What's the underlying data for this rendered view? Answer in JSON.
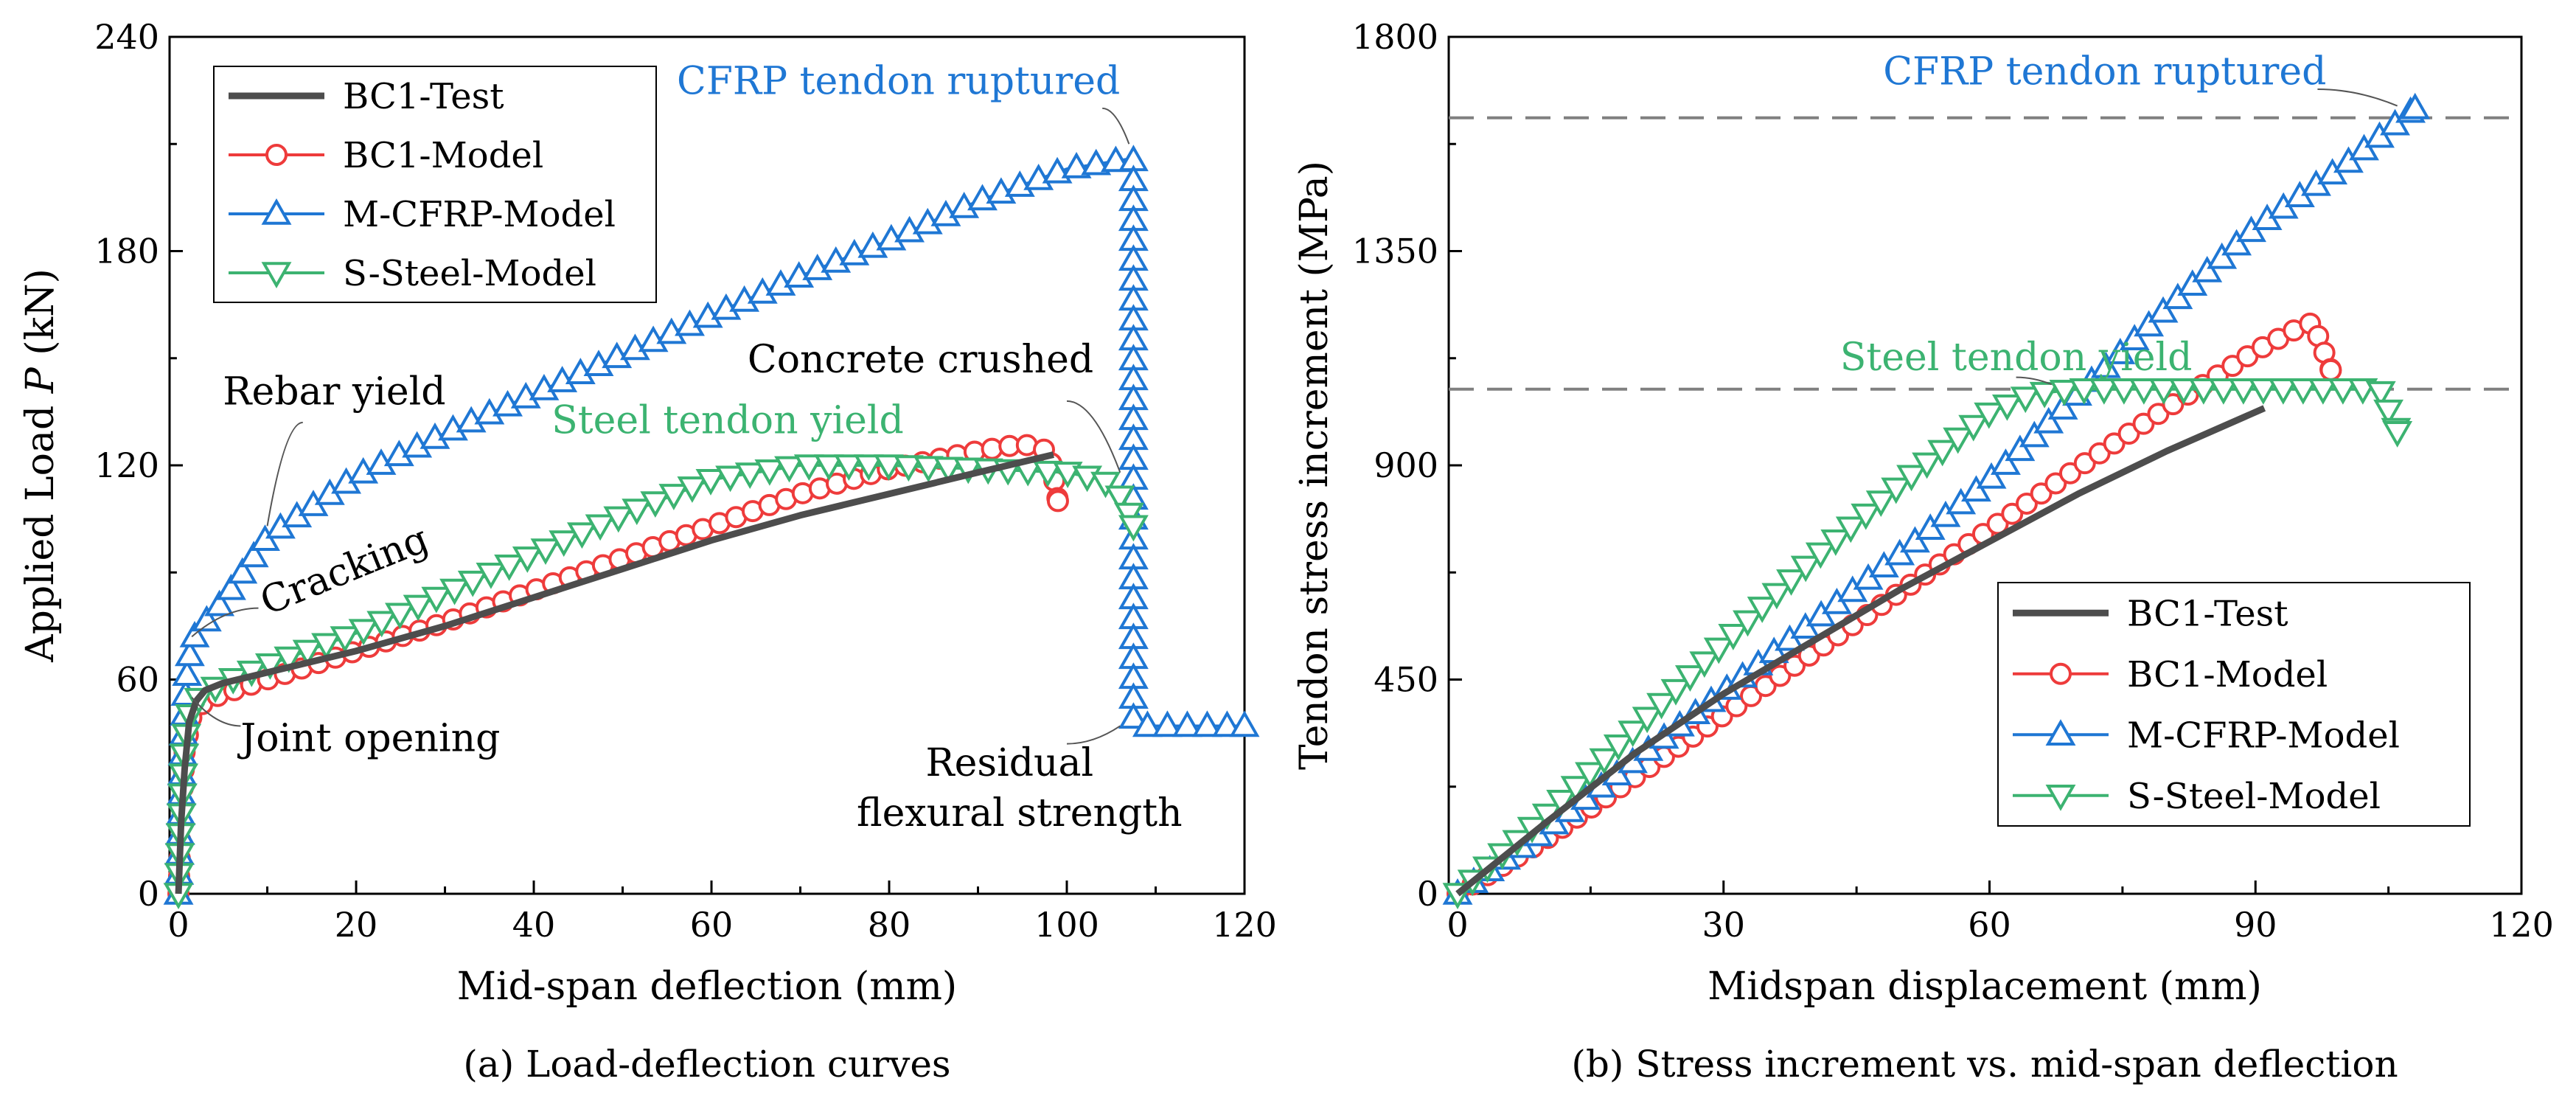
{
  "colors": {
    "test": "#4d4d4d",
    "bc1_model": "#ee3b3b",
    "cfrp": "#1f77d4",
    "steel": "#3cb371",
    "ref_line": "#808080",
    "axis": "#000000"
  },
  "chart_data": [
    {
      "id": "a",
      "type": "line",
      "caption": "(a) Load-deflection curves",
      "xlabel": "Mid-span deflection (mm)",
      "ylabel_prefix": "Applied Load ",
      "ylabel_var": "P",
      "ylabel_suffix": " (kN)",
      "xlim": [
        -1,
        120
      ],
      "ylim": [
        0,
        240
      ],
      "xticks": [
        0,
        20,
        40,
        60,
        80,
        100,
        120
      ],
      "yticks": [
        0,
        60,
        120,
        180,
        240
      ],
      "legend_position": "top-left",
      "series": [
        {
          "name": "BC1-Test",
          "style": "test",
          "marker": "none",
          "x": [
            0,
            0.3,
            0.7,
            1.2,
            2,
            3,
            5,
            10,
            20,
            30,
            40,
            50,
            60,
            70,
            80,
            90,
            98.5
          ],
          "y": [
            0,
            20,
            35,
            48,
            54,
            57,
            59,
            62,
            68,
            75,
            83,
            91,
            99,
            106,
            112,
            118,
            123
          ]
        },
        {
          "name": "BC1-Model",
          "style": "bc1_model",
          "marker": "circle",
          "x": [
            0,
            0.3,
            0.7,
            1.5,
            3,
            5,
            10,
            20,
            30,
            40,
            50,
            60,
            70,
            80,
            90,
            95,
            98,
            99
          ],
          "y": [
            0,
            20,
            40,
            50,
            54,
            56,
            60,
            68,
            76,
            85,
            94,
            103,
            112,
            119,
            124,
            126,
            124,
            110
          ]
        },
        {
          "name": "M-CFRP-Model",
          "style": "cfrp",
          "marker": "triangle-up",
          "x": [
            0,
            0.2,
            0.5,
            0.9,
            1.5,
            3,
            5,
            10,
            20,
            30,
            40,
            50,
            60,
            70,
            80,
            90,
            100,
            107.5,
            107.5,
            108,
            112,
            116,
            120
          ],
          "y": [
            0,
            18,
            40,
            60,
            71,
            76,
            82,
            100,
            117,
            129,
            140,
            151,
            162,
            173,
            183,
            194,
            203,
            206,
            48,
            47,
            47,
            47,
            47
          ]
        },
        {
          "name": "S-Steel-Model",
          "style": "steel",
          "marker": "triangle-down",
          "x": [
            0,
            0.3,
            0.7,
            1.5,
            3,
            5,
            10,
            20,
            30,
            40,
            50,
            60,
            70,
            80,
            90,
            100,
            104,
            106.5,
            107.5
          ],
          "y": [
            0,
            20,
            42,
            53,
            56,
            59,
            64,
            73,
            84,
            95,
            106,
            116,
            120,
            120,
            119,
            118,
            116,
            110,
            103
          ]
        }
      ],
      "annotations": [
        {
          "text": "CFRP tendon ruptured",
          "color": "cfrp",
          "x": 106,
          "y": 224,
          "anchor": "end",
          "leader": [
            [
              104,
              220
            ],
            [
              107,
              210
            ]
          ]
        },
        {
          "text": "Concrete crushed",
          "color": "axis",
          "x": 103,
          "y": 146,
          "anchor": "end",
          "leader": [
            [
              100,
              138
            ],
            [
              106,
              118
            ]
          ]
        },
        {
          "text": "Steel tendon yield",
          "color": "steel",
          "x": 42,
          "y": 129,
          "anchor": "start",
          "leader": []
        },
        {
          "text": "Rebar yield",
          "color": "axis",
          "x": 5,
          "y": 137,
          "anchor": "start",
          "leader": [
            [
              14,
              132
            ],
            [
              10,
              103
            ]
          ]
        },
        {
          "text": "Cracking",
          "color": "axis",
          "x": 10,
          "y": 78,
          "anchor": "start",
          "rotate": -22,
          "leader": [
            [
              9,
              80
            ],
            [
              1.5,
              72
            ]
          ]
        },
        {
          "text": "Joint opening",
          "color": "axis",
          "x": 7,
          "y": 40,
          "anchor": "start",
          "leader": [
            [
              7,
              47
            ],
            [
              1.5,
              55
            ]
          ]
        },
        {
          "text": "Residual",
          "color": "axis",
          "x": 103,
          "y": 33,
          "anchor": "end",
          "leader": [
            [
              100,
              42
            ],
            [
              106,
              47
            ]
          ]
        },
        {
          "text": "flexural strength",
          "color": "axis",
          "x": 113,
          "y": 19,
          "anchor": "end",
          "leader": []
        }
      ]
    },
    {
      "id": "b",
      "type": "line",
      "caption": "(b) Stress increment vs. mid-span deflection",
      "xlabel": "Midspan displacement (mm)",
      "ylabel": "Tendon stress increment (MPa)",
      "xlim": [
        -1,
        120
      ],
      "ylim": [
        0,
        1800
      ],
      "xticks": [
        0,
        30,
        60,
        90,
        120
      ],
      "yticks": [
        0,
        450,
        900,
        1350,
        1800
      ],
      "legend_position": "bottom-right",
      "reference_lines": [
        1630,
        1060
      ],
      "series": [
        {
          "name": "BC1-Test",
          "style": "test",
          "marker": "none",
          "x": [
            0,
            10,
            20,
            30,
            40,
            50,
            60,
            70,
            80,
            91
          ],
          "y": [
            0,
            150,
            295,
            420,
            530,
            640,
            740,
            840,
            930,
            1020
          ]
        },
        {
          "name": "BC1-Model",
          "style": "bc1_model",
          "marker": "circle",
          "x": [
            0,
            10,
            20,
            30,
            40,
            50,
            60,
            70,
            80,
            90,
            95,
            96.5,
            97.5,
            98.5
          ],
          "y": [
            0,
            115,
            245,
            375,
            505,
            635,
            765,
            895,
            1020,
            1140,
            1190,
            1200,
            1150,
            1100
          ]
        },
        {
          "name": "M-CFRP-Model",
          "style": "cfrp",
          "marker": "triangle-up",
          "x": [
            0,
            10,
            20,
            30,
            40,
            50,
            60,
            70,
            80,
            90,
            100,
            108
          ],
          "y": [
            0,
            135,
            280,
            425,
            570,
            715,
            870,
            1050,
            1230,
            1400,
            1530,
            1650
          ]
        },
        {
          "name": "S-Steel-Model",
          "style": "steel",
          "marker": "triangle-down",
          "x": [
            0,
            10,
            20,
            30,
            40,
            50,
            60,
            65,
            70,
            80,
            90,
            100,
            104,
            106
          ],
          "y": [
            0,
            165,
            345,
            525,
            700,
            860,
            1010,
            1050,
            1060,
            1060,
            1060,
            1060,
            1060,
            970
          ]
        }
      ],
      "annotations": [
        {
          "text": "CFRP tendon ruptured",
          "color": "cfrp",
          "x": 98,
          "y": 1700,
          "anchor": "end",
          "leader": [
            [
              97,
              1690
            ],
            [
              106,
              1655
            ]
          ]
        },
        {
          "text": "Steel tendon yield",
          "color": "steel",
          "x": 63,
          "y": 1100,
          "anchor": "middle",
          "leader": [
            [
              63,
              1085
            ],
            [
              67,
              1070
            ]
          ]
        }
      ]
    }
  ]
}
